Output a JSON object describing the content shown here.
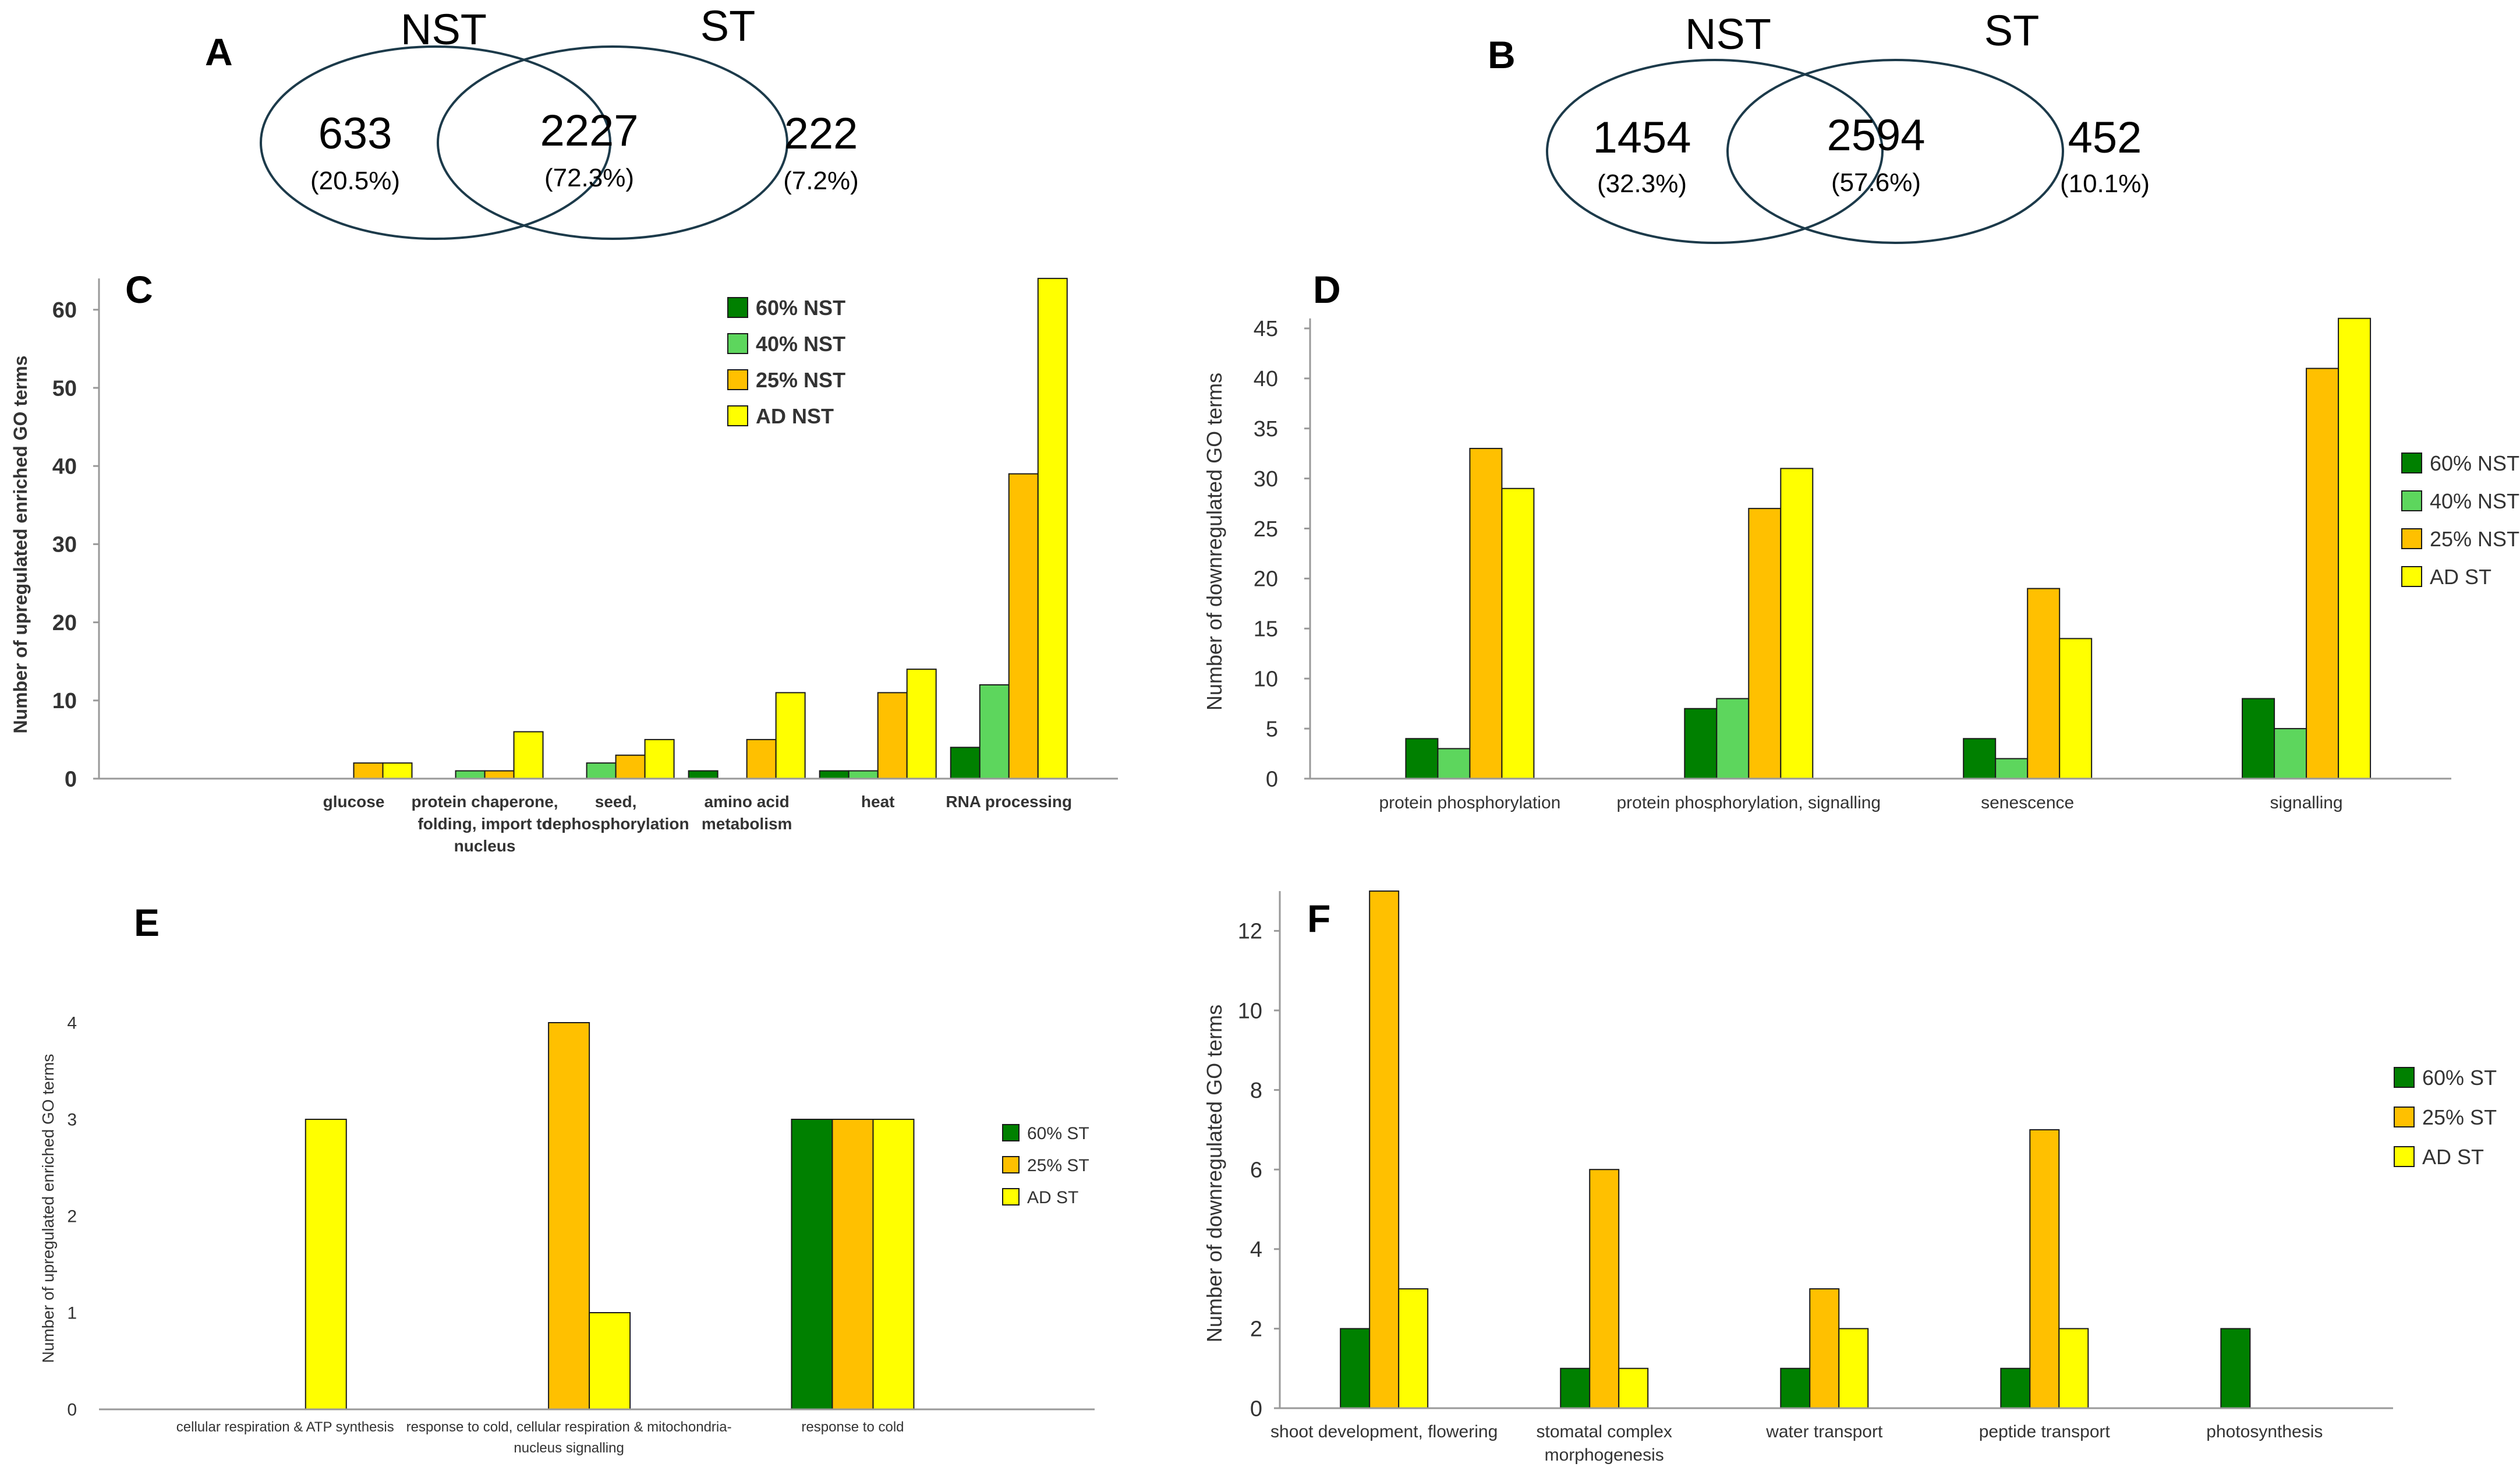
{
  "venn": [
    {
      "letter": "A",
      "left_label": "NST",
      "right_label": "ST",
      "left_count": "633",
      "left_pct": "(20.5%)",
      "mid_count": "2227",
      "mid_pct": "(72.3%)",
      "right_count": "222",
      "right_pct": "(7.2%)"
    },
    {
      "letter": "B",
      "left_label": "NST",
      "right_label": "ST",
      "left_count": "1454",
      "left_pct": "(32.3%)",
      "mid_count": "2594",
      "mid_pct": "(57.6%)",
      "right_count": "452",
      "right_pct": "(10.1%)"
    }
  ],
  "chart_data": [
    {
      "id": "C",
      "type": "bar",
      "ylabel": "Number of upregulated enriched GO terms",
      "ylim": [
        0,
        64
      ],
      "yticks": [
        0,
        10,
        20,
        30,
        40,
        50,
        60
      ],
      "categories": [
        "glucose",
        "protein chaperone, folding, import to nucleus",
        "seed, dephosphorylation",
        "amino acid metabolism",
        "heat",
        "RNA processing"
      ],
      "category_lines": [
        [
          "glucose"
        ],
        [
          "protein chaperone,",
          "folding, import to",
          "nucleus"
        ],
        [
          "seed,",
          "dephosphorylation"
        ],
        [
          "amino acid",
          "metabolism"
        ],
        [
          "heat"
        ],
        [
          "RNA processing"
        ]
      ],
      "series": [
        {
          "name": "60% NST",
          "color": "#008000",
          "values": [
            0,
            0,
            0,
            1,
            1,
            4
          ]
        },
        {
          "name": "40% NST",
          "color": "#5DD65D",
          "values": [
            0,
            1,
            2,
            0,
            1,
            12
          ]
        },
        {
          "name": "25% NST",
          "color": "#FFC000",
          "values": [
            2,
            1,
            3,
            5,
            11,
            39
          ]
        },
        {
          "name": "AD NST",
          "color": "#FFFF00",
          "values": [
            2,
            6,
            5,
            11,
            14,
            64
          ]
        }
      ],
      "legend": "top-right",
      "grid": false
    },
    {
      "id": "D",
      "type": "bar",
      "ylabel": "Number of downregulated GO terms",
      "ylim": [
        0,
        46
      ],
      "yticks": [
        0,
        5,
        10,
        15,
        20,
        25,
        30,
        35,
        40,
        45
      ],
      "categories": [
        "protein phosphorylation",
        "protein phosphorylation, signalling",
        "senescence",
        "signalling"
      ],
      "category_lines": [
        [
          "protein phosphorylation"
        ],
        [
          "protein phosphorylation, signalling"
        ],
        [
          "senescence"
        ],
        [
          "signalling"
        ]
      ],
      "series": [
        {
          "name": "60% NST",
          "color": "#008000",
          "values": [
            4,
            7,
            4,
            8
          ]
        },
        {
          "name": "40% NST",
          "color": "#5DD65D",
          "values": [
            3,
            8,
            2,
            5
          ]
        },
        {
          "name": "25% NST",
          "color": "#FFC000",
          "values": [
            33,
            27,
            19,
            41
          ]
        },
        {
          "name": "AD ST",
          "color": "#FFFF00",
          "values": [
            29,
            31,
            14,
            46
          ]
        }
      ],
      "legend": "right",
      "grid": false
    },
    {
      "id": "E",
      "type": "bar",
      "ylabel": "Number of upregulated enriched GO terms",
      "ylim": [
        0,
        4
      ],
      "yticks": [
        0,
        1,
        2,
        3,
        4
      ],
      "categories": [
        "cellular respiration & ATP synthesis",
        "response to cold, cellular respiration & mitochondria-nucleus signalling",
        "response to cold"
      ],
      "category_lines": [
        [
          "cellular respiration & ATP synthesis"
        ],
        [
          "response to cold, cellular respiration & mitochondria-",
          "nucleus signalling"
        ],
        [
          "response to cold"
        ]
      ],
      "series": [
        {
          "name": "60% ST",
          "color": "#008000",
          "values": [
            0,
            0,
            3
          ]
        },
        {
          "name": "25% ST",
          "color": "#FFC000",
          "values": [
            0,
            4,
            3
          ]
        },
        {
          "name": "AD ST",
          "color": "#FFFF00",
          "values": [
            3,
            1,
            3
          ]
        }
      ],
      "legend": "right",
      "grid": false
    },
    {
      "id": "F",
      "type": "bar",
      "ylabel": "Number of downregulated GO terms",
      "ylim": [
        0,
        13
      ],
      "yticks": [
        0,
        2,
        4,
        6,
        8,
        10,
        12
      ],
      "categories": [
        "shoot development, flowering",
        "stomatal complex morphogenesis",
        "water transport",
        "peptide transport",
        "photosynthesis"
      ],
      "category_lines": [
        [
          "shoot development, flowering"
        ],
        [
          "stomatal complex",
          "morphogenesis"
        ],
        [
          "water transport"
        ],
        [
          "peptide transport"
        ],
        [
          "photosynthesis"
        ]
      ],
      "series": [
        {
          "name": "60% ST",
          "color": "#008000",
          "values": [
            2,
            1,
            1,
            1,
            2
          ]
        },
        {
          "name": "25% ST",
          "color": "#FFC000",
          "values": [
            13,
            6,
            3,
            7,
            0
          ]
        },
        {
          "name": "AD ST",
          "color": "#FFFF00",
          "values": [
            3,
            1,
            2,
            2,
            0
          ]
        }
      ],
      "legend": "right",
      "grid": false
    }
  ]
}
